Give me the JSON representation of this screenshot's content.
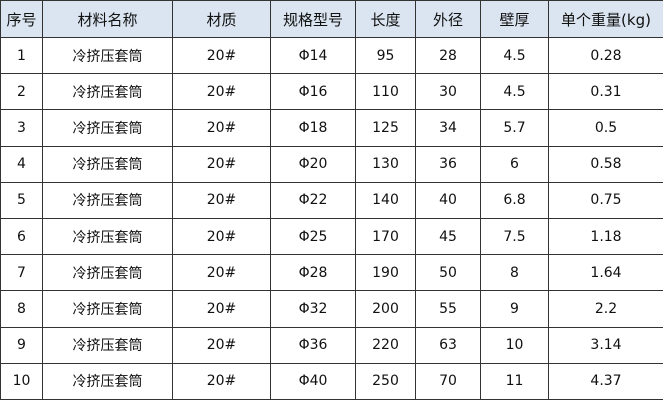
{
  "table": {
    "headers": [
      "序号",
      "材料名称",
      "材质",
      "规格型号",
      "长度",
      "外径",
      "壁厚",
      "单个重量(kg)"
    ],
    "rows": [
      [
        "1",
        "冷挤压套筒",
        "20#",
        "Φ14",
        "95",
        "28",
        "4.5",
        "0.28"
      ],
      [
        "2",
        "冷挤压套筒",
        "20#",
        "Φ16",
        "110",
        "30",
        "4.5",
        "0.31"
      ],
      [
        "3",
        "冷挤压套筒",
        "20#",
        "Φ18",
        "125",
        "34",
        "5.7",
        "0.5"
      ],
      [
        "4",
        "冷挤压套筒",
        "20#",
        "Φ20",
        "130",
        "36",
        "6",
        "0.58"
      ],
      [
        "5",
        "冷挤压套筒",
        "20#",
        "Φ22",
        "140",
        "40",
        "6.8",
        "0.75"
      ],
      [
        "6",
        "冷挤压套筒",
        "20#",
        "Φ25",
        "170",
        "45",
        "7.5",
        "1.18"
      ],
      [
        "7",
        "冷挤压套筒",
        "20#",
        "Φ28",
        "190",
        "50",
        "8",
        "1.64"
      ],
      [
        "8",
        "冷挤压套筒",
        "20#",
        "Φ32",
        "200",
        "55",
        "9",
        "2.2"
      ],
      [
        "9",
        "冷挤压套筒",
        "20#",
        "Φ36",
        "220",
        "63",
        "10",
        "3.14"
      ],
      [
        "10",
        "冷挤压套筒",
        "20#",
        "Φ40",
        "250",
        "70",
        "11",
        "4.37"
      ]
    ]
  }
}
